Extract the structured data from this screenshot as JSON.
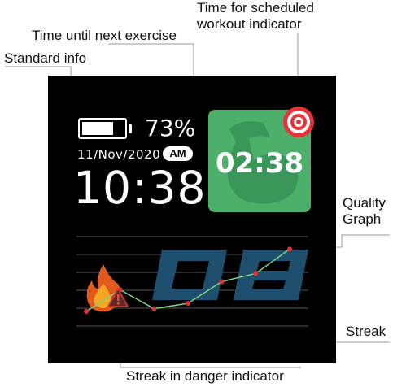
{
  "annotations": {
    "time_for_workout": [
      "Time for scheduled",
      "workout indicator"
    ],
    "time_until_next": "Time until next exercise",
    "standard_info": "Standard info",
    "quality_graph": [
      "Quality",
      "Graph"
    ],
    "streak": "Streak",
    "streak_danger": "Streak in danger indicator"
  },
  "watch": {
    "battery_percent": "73%",
    "battery_level": 0.73,
    "date": "11/Nov/2020",
    "ampm": "AM",
    "time": "10:38",
    "workout_countdown": "02:38",
    "streak_value": "08",
    "icons": {
      "battery": "battery-icon",
      "workout": "flexed-arm-icon",
      "target": "target-icon",
      "fire": "fire-icon",
      "warning": "warning-triangle-icon"
    },
    "colors": {
      "workout_bg": "#4caf6a",
      "target": "#e8323a",
      "streak_digits": "#1f4f6e",
      "graph_line": "#7fd07f",
      "graph_points": "#e03030"
    }
  },
  "chart_data": {
    "type": "line",
    "values": [
      0,
      0.4,
      0.05,
      0.15,
      0.55,
      0.7,
      1.15
    ],
    "ylim": [
      0,
      1.2
    ],
    "grid": true
  }
}
